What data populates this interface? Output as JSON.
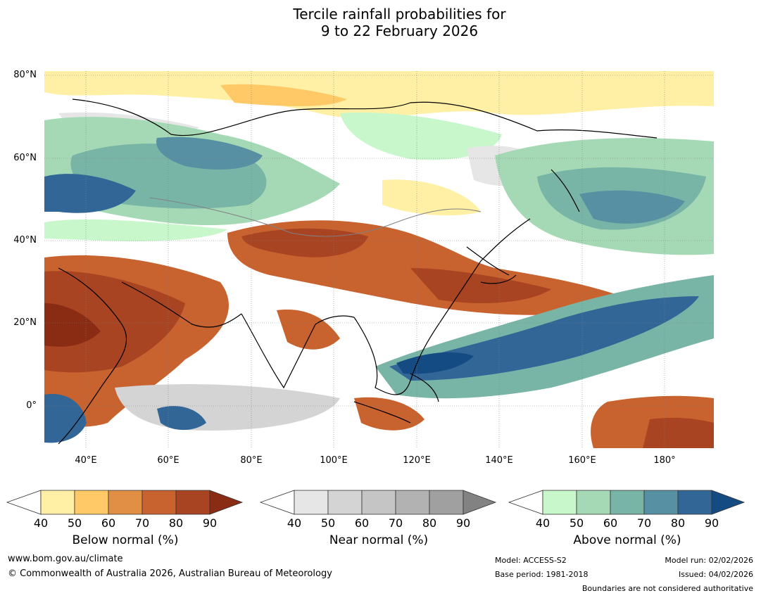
{
  "title": {
    "line1": "Tercile rainfall probabilities for",
    "line2": "9 to 22 February 2026"
  },
  "map": {
    "lat_labels": [
      "80°N",
      "60°N",
      "40°N",
      "20°N",
      "0°"
    ],
    "lon_labels": [
      "40°E",
      "60°E",
      "80°E",
      "100°E",
      "120°E",
      "140°E",
      "160°E",
      "180°"
    ]
  },
  "colorbars": [
    {
      "caption": "Below normal (%)",
      "ticks": [
        "40",
        "50",
        "60",
        "70",
        "80",
        "90"
      ],
      "colors": [
        "#fff0a6",
        "#fec966",
        "#e08f45",
        "#c8622e",
        "#a94423",
        "#8a2c14"
      ]
    },
    {
      "caption": "Near normal (%)",
      "ticks": [
        "40",
        "50",
        "60",
        "70",
        "80",
        "90"
      ],
      "colors": [
        "#e6e6e6",
        "#d4d4d4",
        "#c5c5c5",
        "#b2b2b2",
        "#a0a0a0",
        "#828282"
      ]
    },
    {
      "caption": "Above normal (%)",
      "ticks": [
        "40",
        "50",
        "60",
        "70",
        "80",
        "90"
      ],
      "colors": [
        "#c8f7cc",
        "#a5d9b6",
        "#78b5a6",
        "#5790a2",
        "#326697",
        "#154b83"
      ]
    }
  ],
  "footer": {
    "url": "www.bom.gov.au/climate",
    "copyright": "© Commonwealth of Australia 2026, Australian Bureau of Meteorology",
    "model": "Model: ACCESS-S2",
    "base_period": "Base period: 1981-2018",
    "model_run": "Model run: 02/02/2026",
    "issued": "Issued: 04/02/2026",
    "disclaimer": "Boundaries are not considered authoritative"
  }
}
